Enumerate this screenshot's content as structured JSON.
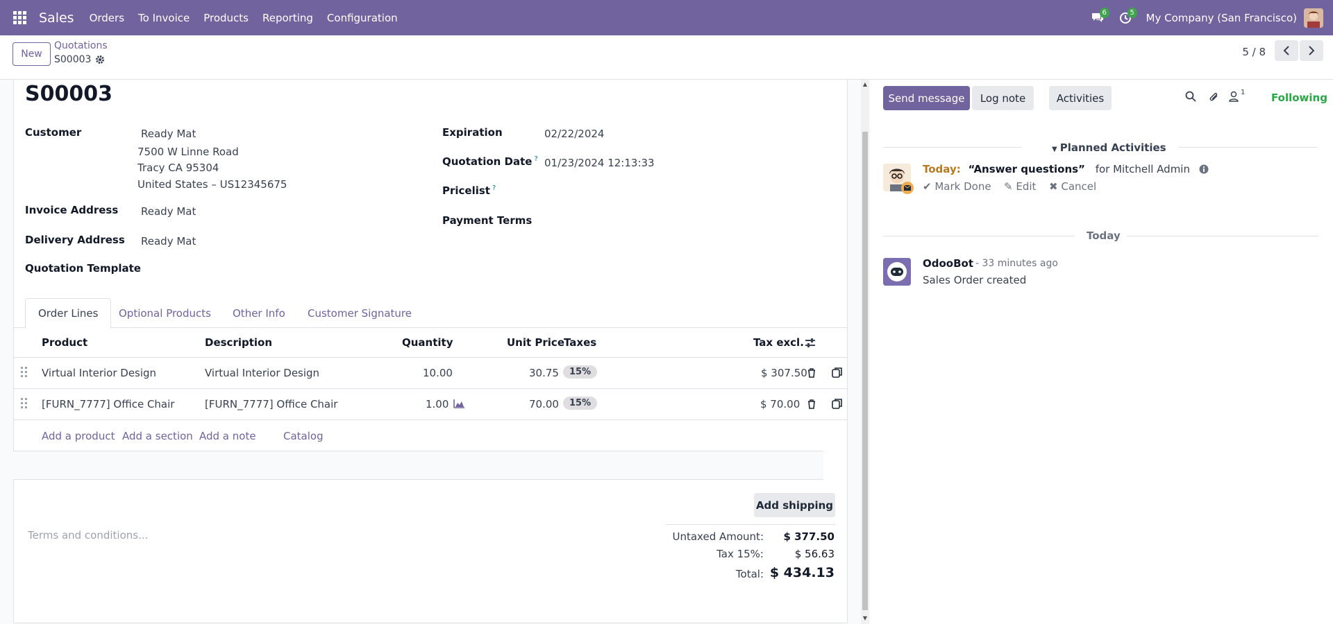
{
  "navbar": {
    "app_name": "Sales",
    "menu": [
      "Orders",
      "To Invoice",
      "Products",
      "Reporting",
      "Configuration"
    ],
    "messages_count": "6",
    "activities_count": "5",
    "company": "My Company (San Francisco)"
  },
  "control_panel": {
    "new_label": "New",
    "breadcrumb_parent": "Quotations",
    "breadcrumb_current": "S00003",
    "pager": "5 / 8"
  },
  "form": {
    "name": "S00003",
    "customer_label": "Customer",
    "customer_name": "Ready Mat",
    "customer_address": [
      "7500 W Linne Road",
      "Tracy CA 95304",
      "United States – US12345675"
    ],
    "invoice_address_label": "Invoice Address",
    "invoice_address": "Ready Mat",
    "delivery_address_label": "Delivery Address",
    "delivery_address": "Ready Mat",
    "quotation_template_label": "Quotation Template",
    "expiration_label": "Expiration",
    "expiration": "02/22/2024",
    "quotation_date_label": "Quotation Date",
    "quotation_date": "01/23/2024 12:13:33",
    "pricelist_label": "Pricelist",
    "payment_terms_label": "Payment Terms",
    "help_mark": "?"
  },
  "tabs": [
    "Order Lines",
    "Optional Products",
    "Other Info",
    "Customer Signature"
  ],
  "order_table": {
    "columns": {
      "product": "Product",
      "description": "Description",
      "quantity": "Quantity",
      "unit_price": "Unit Price",
      "taxes": "Taxes",
      "tax_excl": "Tax excl."
    },
    "rows": [
      {
        "product": "Virtual Interior Design",
        "description": "Virtual Interior Design",
        "quantity": "10.00",
        "unit_price": "30.75",
        "tax": "15%",
        "subtotal": "$ 307.50"
      },
      {
        "product": "[FURN_7777] Office Chair",
        "description": "[FURN_7777] Office Chair",
        "quantity": "1.00",
        "unit_price": "70.00",
        "tax": "15%",
        "subtotal": "$ 70.00"
      }
    ],
    "add_product": "Add a product",
    "add_section": "Add a section",
    "add_note": "Add a note",
    "catalog": "Catalog"
  },
  "footer": {
    "add_shipping": "Add shipping",
    "terms_placeholder": "Terms and conditions...",
    "untaxed_label": "Untaxed Amount:",
    "untaxed_value": "$ 377.50",
    "tax_label": "Tax 15%:",
    "tax_value": "$ 56.63",
    "total_label": "Total:",
    "total_value": "$ 434.13"
  },
  "chatter": {
    "send_message": "Send message",
    "log_note": "Log note",
    "activities": "Activities",
    "followers_count": "1",
    "following": "Following",
    "planned_activities": "Planned Activities",
    "activity": {
      "when": "Today:",
      "summary": "“Answer questions”",
      "for": "for Mitchell Admin",
      "mark_done": "Mark Done",
      "edit": "Edit",
      "cancel": "Cancel"
    },
    "today_label": "Today",
    "message": {
      "author": "OdooBot",
      "date": "- 33 minutes ago",
      "body": "Sales Order created"
    }
  },
  "colors": {
    "brand": "#71639e",
    "success": "#28a745",
    "badge": "#3fa34d",
    "today": "#b7791f"
  }
}
